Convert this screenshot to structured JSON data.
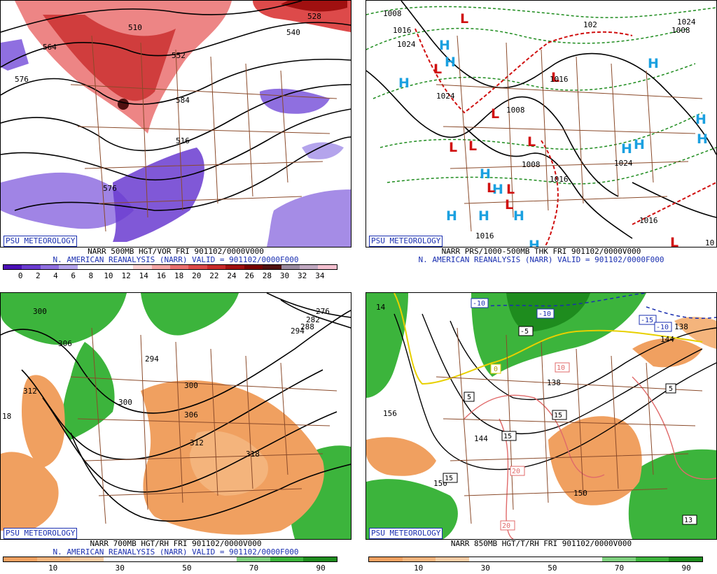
{
  "panels": [
    {
      "psu": "PSU METEOROLOGY",
      "line1": "NARR 500MB HGT/VOR FRI 901102/0000V000",
      "line2": "N. AMERICAN REANALYSIS (NARR) VALID = 901102/0000F000",
      "colorbar": {
        "colors": [
          "#4a0fb5",
          "#6a3bd0",
          "#8f6fe0",
          "#b4a4ec",
          "#ffffff",
          "#ffffff",
          "#ffffff",
          "#fbd3d3",
          "#f4a4a4",
          "#ea7070",
          "#dd4a4a",
          "#c82a2a",
          "#a01010",
          "#780000",
          "#501010",
          "#9a8aa0",
          "#c0a8c0",
          "#f4c0d0"
        ],
        "ticks": [
          "0",
          "2",
          "4",
          "6",
          "8",
          "10",
          "12",
          "14",
          "16",
          "18",
          "20",
          "22",
          "24",
          "26",
          "28",
          "30",
          "32",
          "34"
        ]
      },
      "labels": [
        "528",
        "540",
        "552",
        "564",
        "576",
        "584",
        "516",
        "510",
        "576",
        "510"
      ]
    },
    {
      "psu": "PSU METEOROLOGY",
      "line1": "NARR PRS/1000-500MB THK FRI 901102/0000V000",
      "line2": "N. AMERICAN REANALYSIS (NARR) VALID = 901102/0000F000",
      "labels": [
        "1008",
        "1016",
        "1024",
        "1024",
        "1008",
        "1008",
        "1016",
        "1024",
        "1016",
        "1016",
        "1008",
        "1024",
        "1016",
        "102",
        "10"
      ],
      "highs": "H",
      "lows": "L"
    },
    {
      "psu": "PSU METEOROLOGY",
      "line1": "NARR 700MB HGT/RH FRI 901102/0000V000",
      "line2": "N. AMERICAN REANALYSIS (NARR) VALID = 901102/0000F000",
      "colorbar": {
        "colors": [
          "#f0a060",
          "#f4b47c",
          "#f8cca4",
          "#ffffff",
          "#ffffff",
          "#ffffff",
          "#ffffff",
          "#7ed07e",
          "#3cb43c",
          "#1e8c1e"
        ],
        "ticks": [
          "10",
          "30",
          "50",
          "70",
          "90"
        ]
      },
      "labels": [
        "300",
        "306",
        "312",
        "294",
        "300",
        "306",
        "312",
        "318",
        "300",
        "306",
        "300",
        "294",
        "288",
        "282",
        "276",
        "18"
      ]
    },
    {
      "psu": "PSU METEOROLOGY",
      "line1": "NARR 850MB HGT/T/RH FRI 901102/0000V000",
      "colorbar": {
        "colors": [
          "#f0a060",
          "#f4b47c",
          "#f8cca4",
          "#ffffff",
          "#ffffff",
          "#ffffff",
          "#ffffff",
          "#7ed07e",
          "#3cb43c",
          "#1e8c1e"
        ],
        "ticks": [
          "10",
          "30",
          "50",
          "70",
          "90"
        ]
      },
      "labels": [
        "156",
        "150",
        "144",
        "138",
        "150",
        "144",
        "138",
        "14"
      ],
      "isotherms": [
        "-10",
        "-10",
        "-15",
        "-10",
        "-5",
        "0",
        "5",
        "10",
        "5",
        "15",
        "15",
        "15",
        "20",
        "20",
        "13",
        "15",
        "15",
        "5"
      ]
    }
  ]
}
